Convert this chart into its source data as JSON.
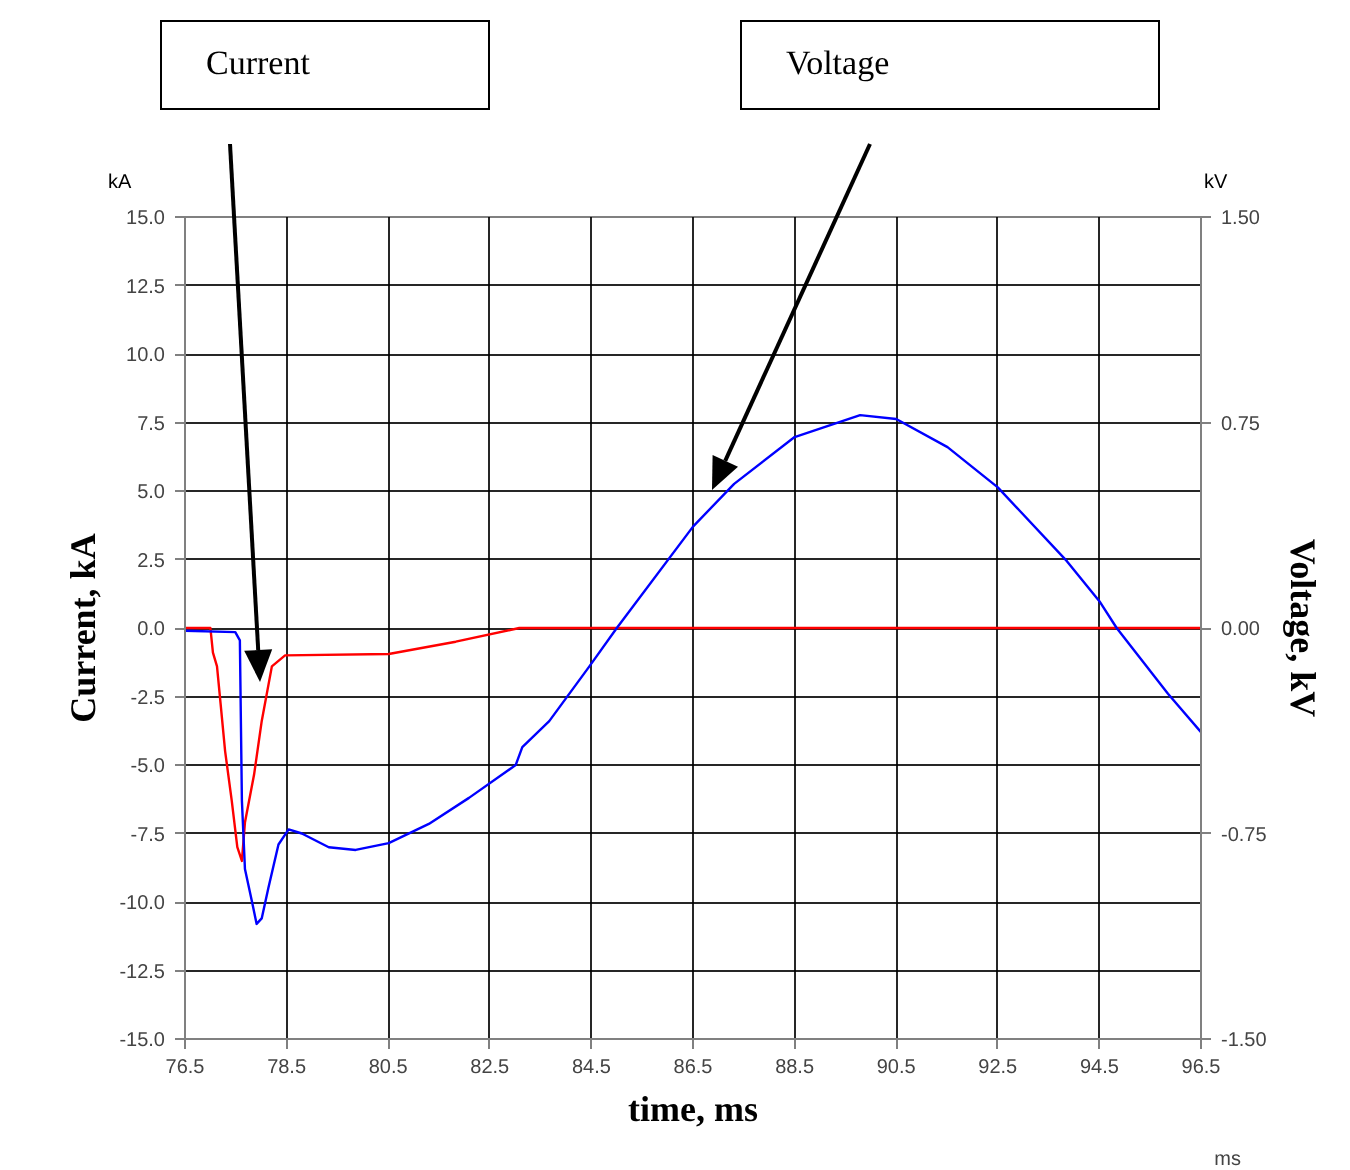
{
  "chart_data": {
    "type": "line",
    "xlabel": "time, ms",
    "ylabel": "Current, kA",
    "y2label": "Voltage, kV",
    "xlim": [
      76.5,
      96.5
    ],
    "xticks": [
      76.5,
      78.5,
      80.5,
      82.5,
      84.5,
      86.5,
      88.5,
      90.5,
      92.5,
      94.5,
      96.5
    ],
    "ylim": [
      -15,
      15
    ],
    "yticks": [
      {
        "value": -15,
        "label": "-15.0"
      },
      {
        "value": -12.5,
        "label": "-12.5"
      },
      {
        "value": -10,
        "label": "-10.0"
      },
      {
        "value": -7.5,
        "label": "-7.5"
      },
      {
        "value": -5,
        "label": "-5.0"
      },
      {
        "value": -2.5,
        "label": "-2.5"
      },
      {
        "value": 0,
        "label": "0.0"
      },
      2.5,
      {
        "value": 5,
        "label": "5.0"
      },
      {
        "value": 7.5,
        "label": "7.5"
      },
      {
        "value": 10,
        "label": "10.0"
      },
      {
        "value": 12.5,
        "label": "12.5"
      },
      {
        "value": 15,
        "label": "15.0"
      }
    ],
    "y2lim": [
      -1.5,
      1.5
    ],
    "y2ticks": [
      {
        "value": -1.5,
        "label": "-1.50"
      },
      {
        "value": -0.75,
        "label": "-0.75"
      },
      {
        "value": 0,
        "label": "0.00"
      },
      {
        "value": 0.75,
        "label": "0.75"
      },
      {
        "value": 1.5,
        "label": "1.50"
      }
    ],
    "grid": true,
    "series": [
      {
        "color": "#ff0000",
        "x": [
          76.5,
          77.0,
          77.05,
          77.13,
          77.2,
          77.29,
          77.42,
          77.53,
          77.62,
          77.68,
          77.86,
          78.01,
          78.21,
          78.47,
          80.51,
          81.83,
          83.08,
          96.5
        ],
        "values": [
          0,
          0,
          -0.9,
          -1.4,
          -2.75,
          -4.5,
          -6.3,
          -8.0,
          -8.5,
          -7.1,
          -5.35,
          -3.4,
          -1.4,
          -1.0,
          -0.95,
          -0.5,
          0,
          0
        ]
      },
      {
        "color": "#0000ff",
        "axis": "y2",
        "x": [
          76.5,
          77.49,
          77.58,
          77.62,
          77.68,
          77.82,
          77.91,
          78.01,
          78.14,
          78.34,
          78.54,
          78.8,
          79.33,
          79.86,
          80.51,
          81.3,
          82.09,
          83.01,
          83.14,
          83.67,
          84.46,
          85.0,
          86.5,
          87.31,
          88.5,
          89.79,
          90.5,
          91.51,
          92.5,
          93.86,
          94.5,
          94.84,
          95.85,
          96.5
        ],
        "values": [
          -0.01,
          -0.015,
          -0.045,
          -0.63,
          -0.88,
          -1.0,
          -1.08,
          -1.06,
          -0.95,
          -0.79,
          -0.735,
          -0.75,
          -0.8,
          -0.81,
          -0.785,
          -0.715,
          -0.62,
          -0.5,
          -0.435,
          -0.34,
          -0.14,
          0,
          0.37,
          0.526,
          0.697,
          0.777,
          0.763,
          0.66,
          0.513,
          0.244,
          0.098,
          0,
          -0.24,
          -0.38
        ]
      }
    ],
    "annotations": [
      "Current",
      "Voltage",
      "kA",
      "kV",
      "ms"
    ]
  }
}
